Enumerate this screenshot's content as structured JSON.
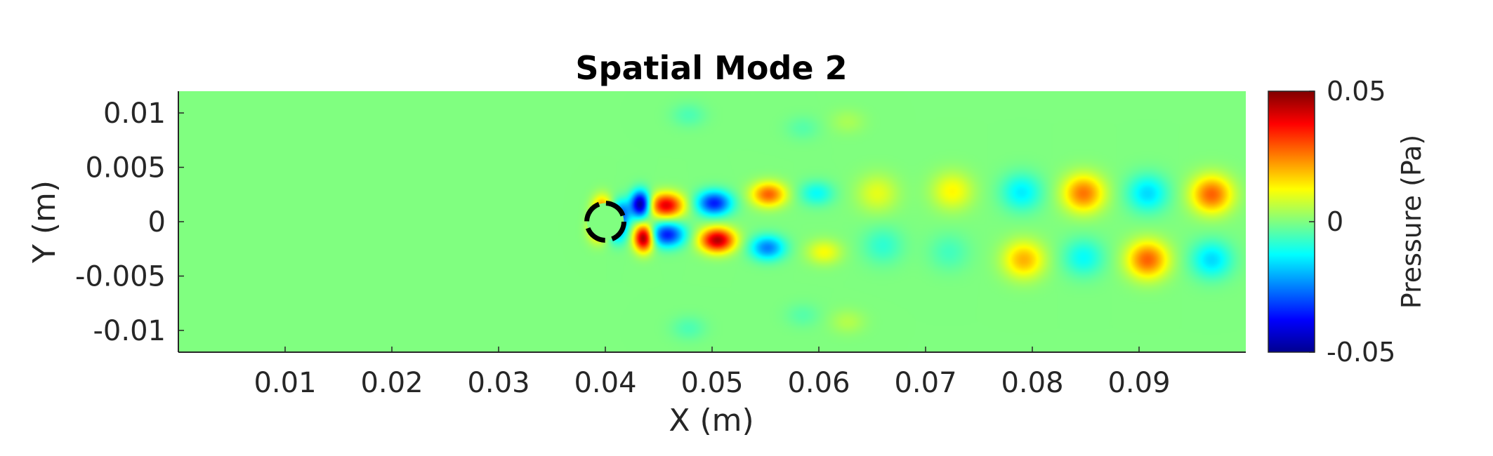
{
  "chart_data": {
    "type": "heatmap",
    "title": "Spatial Mode 2",
    "xlabel": "X (m)",
    "ylabel": "Y (m)",
    "xlim": [
      0,
      0.1
    ],
    "ylim": [
      -0.012,
      0.012
    ],
    "x_ticks": [
      0.01,
      0.02,
      0.03,
      0.04,
      0.05,
      0.06,
      0.07,
      0.08,
      0.09
    ],
    "x_tick_labels": [
      "0.01",
      "0.02",
      "0.03",
      "0.04",
      "0.05",
      "0.06",
      "0.07",
      "0.08",
      "0.09"
    ],
    "y_ticks": [
      0.01,
      0.005,
      0,
      -0.005,
      -0.01
    ],
    "y_tick_labels": [
      "0.01",
      "0.005",
      "0",
      "-0.005",
      "-0.01"
    ],
    "colorbar": {
      "label": "Pressure (Pa)",
      "range": [
        -0.05,
        0.05
      ],
      "ticks": [
        0.05,
        0,
        -0.05
      ],
      "tick_labels": [
        "0.05",
        "0",
        "-0.05"
      ],
      "colormap": "jet"
    },
    "background_value": 0,
    "cylinder": {
      "x": 0.04,
      "y": 0.0,
      "r": 0.0012
    },
    "pressure_extrema": [
      {
        "x": 0.0397,
        "y": 0.0012,
        "value": 0.025
      },
      {
        "x": 0.0393,
        "y": -0.0007,
        "value": 0.02
      },
      {
        "x": 0.0415,
        "y": 0.0008,
        "value": -0.025
      },
      {
        "x": 0.0412,
        "y": -0.0008,
        "value": -0.02
      },
      {
        "x": 0.0433,
        "y": 0.0016,
        "value": -0.05
      },
      {
        "x": 0.0436,
        "y": -0.0015,
        "value": 0.05
      },
      {
        "x": 0.0457,
        "y": 0.0015,
        "value": 0.04
      },
      {
        "x": 0.0458,
        "y": -0.0012,
        "value": -0.035
      },
      {
        "x": 0.0502,
        "y": 0.0017,
        "value": -0.035
      },
      {
        "x": 0.0505,
        "y": -0.0017,
        "value": 0.045
      },
      {
        "x": 0.0553,
        "y": 0.0025,
        "value": 0.028
      },
      {
        "x": 0.0552,
        "y": -0.0024,
        "value": -0.025
      },
      {
        "x": 0.0598,
        "y": 0.0026,
        "value": -0.012
      },
      {
        "x": 0.0605,
        "y": -0.0028,
        "value": 0.012
      },
      {
        "x": 0.0655,
        "y": 0.0026,
        "value": 0.01
      },
      {
        "x": 0.066,
        "y": -0.0022,
        "value": -0.008
      },
      {
        "x": 0.0725,
        "y": 0.0028,
        "value": 0.013
      },
      {
        "x": 0.0722,
        "y": -0.0028,
        "value": -0.006
      },
      {
        "x": 0.079,
        "y": 0.0027,
        "value": -0.014
      },
      {
        "x": 0.0792,
        "y": -0.0035,
        "value": 0.02
      },
      {
        "x": 0.0848,
        "y": 0.0026,
        "value": 0.026
      },
      {
        "x": 0.0848,
        "y": -0.0033,
        "value": -0.012
      },
      {
        "x": 0.0908,
        "y": 0.0026,
        "value": -0.016
      },
      {
        "x": 0.0908,
        "y": -0.0035,
        "value": 0.028
      },
      {
        "x": 0.0968,
        "y": 0.0025,
        "value": 0.028
      },
      {
        "x": 0.0968,
        "y": -0.0035,
        "value": -0.016
      },
      {
        "x": 0.0478,
        "y": 0.0098,
        "value": -0.005
      },
      {
        "x": 0.0478,
        "y": -0.0098,
        "value": -0.005
      },
      {
        "x": 0.0585,
        "y": 0.0086,
        "value": -0.004
      },
      {
        "x": 0.0585,
        "y": -0.0086,
        "value": -0.004
      },
      {
        "x": 0.0627,
        "y": 0.0092,
        "value": 0.004
      },
      {
        "x": 0.0627,
        "y": -0.0092,
        "value": 0.005
      }
    ]
  }
}
